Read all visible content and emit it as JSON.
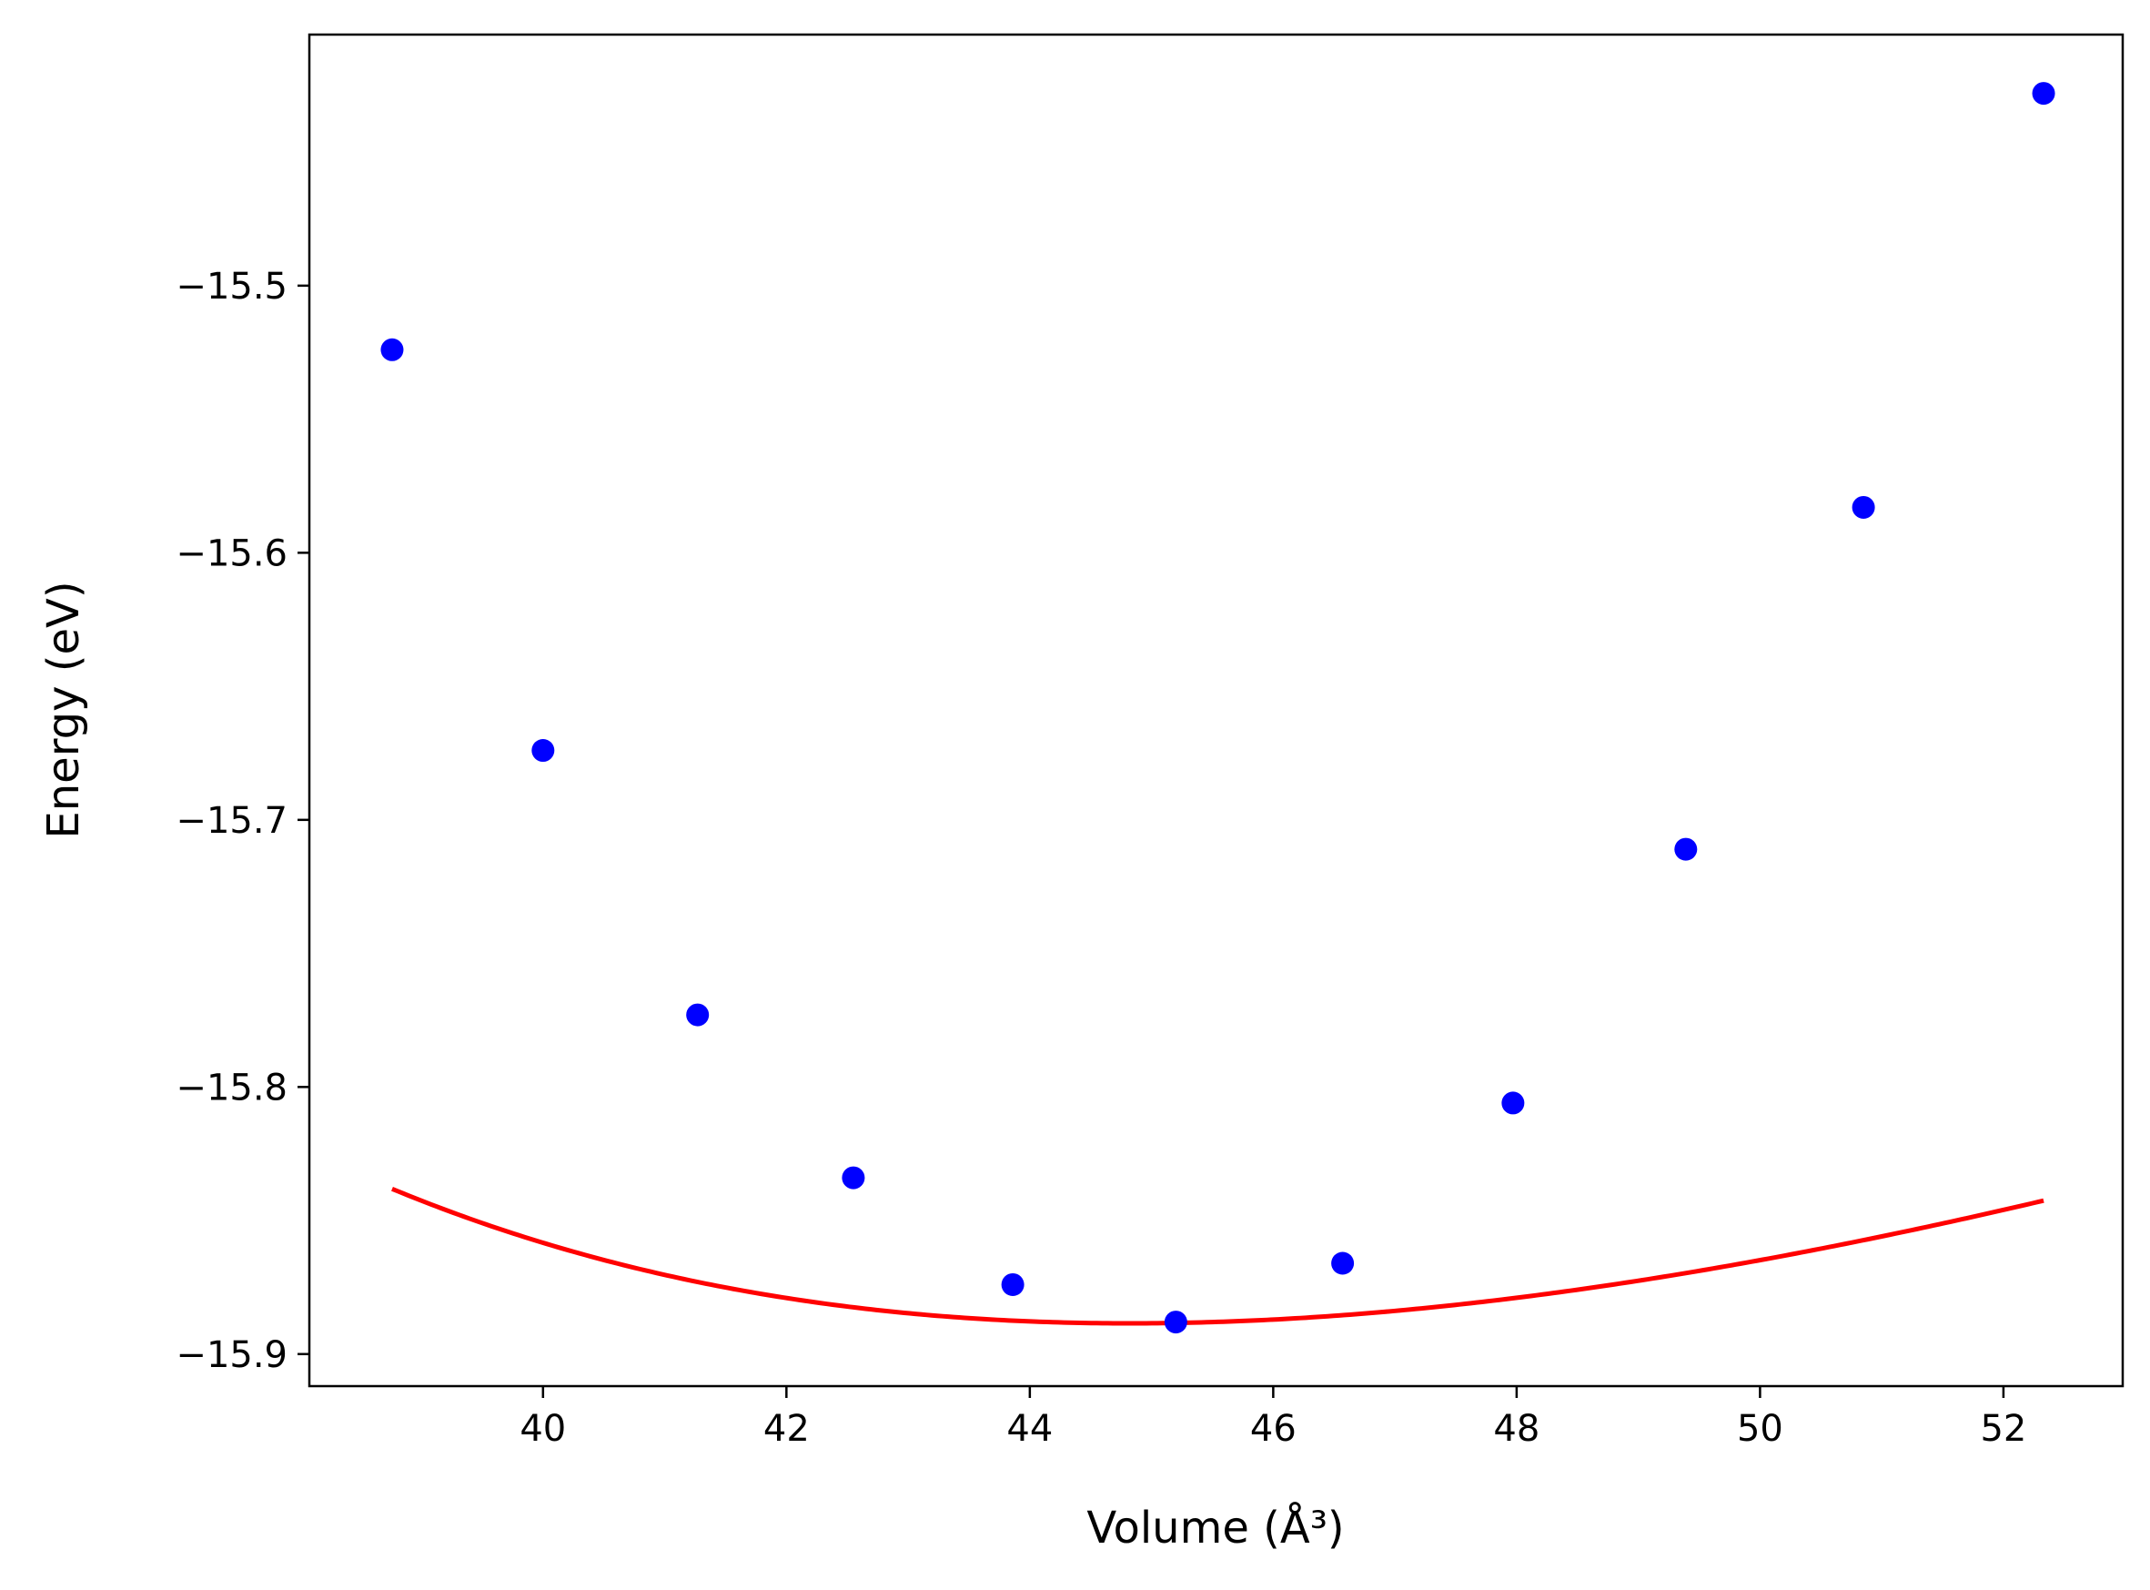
{
  "chart_data": {
    "type": "scatter",
    "title": "",
    "xlabel": "Volume (Å³)",
    "ylabel": "Energy (eV)",
    "xlim": [
      38.08,
      52.98
    ],
    "ylim": [
      -15.912,
      -15.406
    ],
    "grid": false,
    "x_ticks": [
      40,
      42,
      44,
      46,
      48,
      50,
      52
    ],
    "x_tick_labels": [
      "40",
      "42",
      "44",
      "46",
      "48",
      "50",
      "52"
    ],
    "y_ticks": [
      -15.5,
      -15.6,
      -15.7,
      -15.8,
      -15.9
    ],
    "y_tick_labels": [
      "−15.5",
      "−15.6",
      "−15.7",
      "−15.8",
      "−15.9"
    ],
    "series": [
      {
        "kind": "points",
        "color": "#0000ff",
        "x": [
          38.76,
          40.0,
          41.27,
          42.55,
          43.86,
          45.2,
          46.57,
          47.97,
          49.39,
          50.85,
          52.33
        ],
        "y": [
          -15.524,
          -15.674,
          -15.773,
          -15.834,
          -15.874,
          -15.888,
          -15.866,
          -15.806,
          -15.711,
          -15.583,
          -15.428
        ]
      },
      {
        "kind": "fit-curve",
        "color": "#ff0000",
        "model": "birch-murnaghan",
        "E0": -15.8885,
        "V0": 44.82,
        "B0": 0.0956,
        "B0_prime": 4.2,
        "x_range": [
          38.76,
          52.33
        ]
      }
    ]
  }
}
